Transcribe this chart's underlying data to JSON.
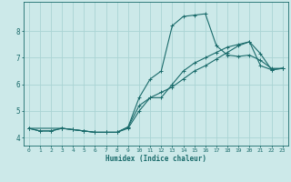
{
  "title": "",
  "xlabel": "Humidex (Indice chaleur)",
  "background_color": "#cce9e9",
  "grid_color": "#aad4d4",
  "line_color": "#1a6b6b",
  "xlim": [
    -0.5,
    23.5
  ],
  "ylim": [
    3.7,
    9.1
  ],
  "xticks": [
    0,
    1,
    2,
    3,
    4,
    5,
    6,
    7,
    8,
    9,
    10,
    11,
    12,
    13,
    14,
    15,
    16,
    17,
    18,
    19,
    20,
    21,
    22,
    23
  ],
  "yticks": [
    4,
    5,
    6,
    7,
    8
  ],
  "lines": [
    {
      "x": [
        0,
        1,
        2,
        3,
        4,
        5,
        6,
        7,
        8,
        9,
        10,
        11,
        12,
        13,
        14,
        15,
        16,
        17,
        18,
        19,
        20,
        21,
        22,
        23
      ],
      "y": [
        4.35,
        4.25,
        4.25,
        4.35,
        4.3,
        4.25,
        4.2,
        4.2,
        4.2,
        4.4,
        5.5,
        6.2,
        6.5,
        8.2,
        8.55,
        8.6,
        8.65,
        7.45,
        7.1,
        7.05,
        7.1,
        6.9,
        6.6,
        6.6
      ]
    },
    {
      "x": [
        0,
        1,
        2,
        3,
        4,
        5,
        6,
        7,
        8,
        9,
        10,
        11,
        12,
        13,
        14,
        15,
        16,
        17,
        18,
        19,
        20,
        21,
        22,
        23
      ],
      "y": [
        4.35,
        4.25,
        4.25,
        4.35,
        4.3,
        4.25,
        4.2,
        4.2,
        4.2,
        4.4,
        5.2,
        5.5,
        5.5,
        6.0,
        6.5,
        6.8,
        7.0,
        7.2,
        7.4,
        7.5,
        7.6,
        6.7,
        6.55,
        6.6
      ]
    },
    {
      "x": [
        0,
        3,
        4,
        5,
        6,
        7,
        8,
        9,
        10,
        11,
        12,
        13,
        14,
        15,
        16,
        17,
        18,
        19,
        20,
        21,
        22,
        23
      ],
      "y": [
        4.35,
        4.35,
        4.3,
        4.25,
        4.2,
        4.2,
        4.2,
        4.35,
        5.0,
        5.5,
        5.7,
        5.9,
        6.2,
        6.5,
        6.7,
        6.95,
        7.2,
        7.45,
        7.6,
        7.15,
        6.55,
        6.6
      ]
    }
  ]
}
